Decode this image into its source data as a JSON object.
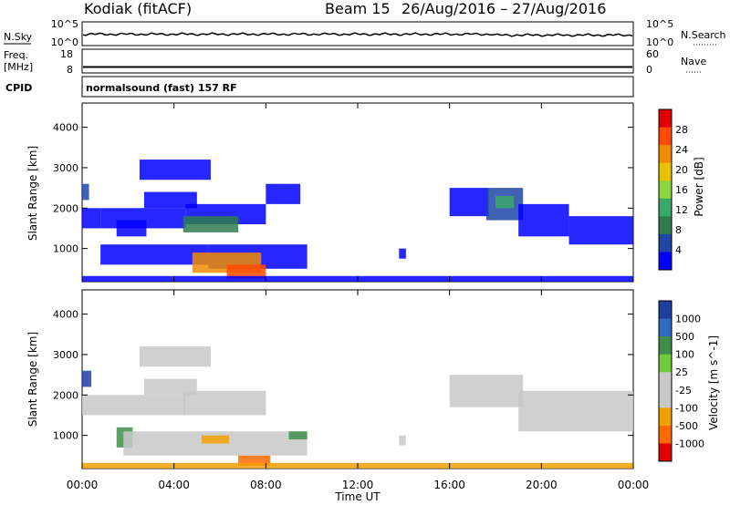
{
  "header": {
    "station": "Kodiak (fitACF)",
    "beam": "Beam 15",
    "date_range": "26/Aug/2016 – 27/Aug/2016"
  },
  "nsky_strip": {
    "left_label": "N.Sky",
    "right_label": "N.Search",
    "left_ticks": [
      "10^5",
      "10^0"
    ],
    "right_ticks": [
      "10^5",
      "10^0"
    ]
  },
  "freq_strip": {
    "left_label_line1": "Freq.",
    "left_label_line2": "[MHz]",
    "right_label": "Nave",
    "left_ticks": [
      "18",
      "8"
    ],
    "right_ticks": [
      "60",
      "0"
    ]
  },
  "cpid": {
    "label": "CPID",
    "text": "normalsound (fast) 157 RF"
  },
  "colors": {
    "power_scale": [
      "#0000ff",
      "#1f47a8",
      "#2e7d4f",
      "#3aa86a",
      "#8bd43c",
      "#e8c200",
      "#f08c00",
      "#ff4a00",
      "#e00000"
    ],
    "velocity_scale": [
      "#1f3fa0",
      "#2d6cc0",
      "#3f8f4a",
      "#6dcc3a",
      "#c8c8c8",
      "#c8c8c8",
      "#f0a000",
      "#ff6a00",
      "#e00000"
    ],
    "ground_scatter": "#c0c0c0"
  },
  "chart_data": [
    {
      "type": "heatmap",
      "title": "Power",
      "ylabel": "Slant Range [km]",
      "xlabel": "",
      "ylim": [
        180,
        4600
      ],
      "yticks": [
        "1000",
        "2000",
        "3000",
        "4000"
      ],
      "xticks": [
        "00:00",
        "04:00",
        "08:00",
        "12:00",
        "16:00",
        "20:00",
        "00:00"
      ],
      "colorbar_label": "Power [dB]",
      "colorbar_ticks": [
        "4",
        "8",
        "12",
        "16",
        "20",
        "24",
        "28"
      ],
      "regions": [
        {
          "t0": 0.0,
          "t1": 0.3,
          "r0": 2200,
          "r1": 2600,
          "level": 6
        },
        {
          "t0": 0.0,
          "t1": 0.8,
          "r0": 1500,
          "r1": 2000,
          "level": 5
        },
        {
          "t0": 0.8,
          "t1": 4.5,
          "r0": 1500,
          "r1": 2000,
          "level": 4
        },
        {
          "t0": 4.5,
          "t1": 8.0,
          "r0": 1600,
          "r1": 2100,
          "level": 4
        },
        {
          "t0": 1.5,
          "t1": 2.8,
          "r0": 1300,
          "r1": 1700,
          "level": 3
        },
        {
          "t0": 4.4,
          "t1": 6.8,
          "r0": 1400,
          "r1": 1800,
          "level": 12
        },
        {
          "t0": 8.0,
          "t1": 9.5,
          "r0": 2100,
          "r1": 2600,
          "level": 2
        },
        {
          "t0": 2.5,
          "t1": 5.6,
          "r0": 2700,
          "r1": 3200,
          "level": 3
        },
        {
          "t0": 2.7,
          "t1": 5.0,
          "r0": 2000,
          "r1": 2400,
          "level": 2
        },
        {
          "t0": 0.8,
          "t1": 5.5,
          "r0": 600,
          "r1": 1100,
          "level": 3
        },
        {
          "t0": 5.5,
          "t1": 9.8,
          "r0": 500,
          "r1": 1100,
          "level": 4
        },
        {
          "t0": 4.8,
          "t1": 7.8,
          "r0": 400,
          "r1": 900,
          "level": 26
        },
        {
          "t0": 6.3,
          "t1": 8.0,
          "r0": 250,
          "r1": 600,
          "level": 29
        },
        {
          "t0": 13.8,
          "t1": 14.1,
          "r0": 750,
          "r1": 1000,
          "level": 4
        },
        {
          "t0": 16.0,
          "t1": 17.7,
          "r0": 1800,
          "r1": 2500,
          "level": 3
        },
        {
          "t0": 17.6,
          "t1": 19.2,
          "r0": 1700,
          "r1": 2500,
          "level": 6
        },
        {
          "t0": 18.0,
          "t1": 18.8,
          "r0": 2000,
          "r1": 2300,
          "level": 14
        },
        {
          "t0": 19.0,
          "t1": 21.2,
          "r0": 1300,
          "r1": 2100,
          "level": 3
        },
        {
          "t0": 21.2,
          "t1": 24.0,
          "r0": 1100,
          "r1": 1800,
          "level": 3
        },
        {
          "t0": 0.0,
          "t1": 24.0,
          "r0": 180,
          "r1": 320,
          "level": 2
        }
      ]
    },
    {
      "type": "heatmap",
      "title": "Velocity",
      "ylabel": "Slant Range [km]",
      "xlabel": "Time UT",
      "ylim": [
        180,
        4600
      ],
      "yticks": [
        "1000",
        "2000",
        "3000",
        "4000"
      ],
      "xticks": [
        "00:00",
        "04:00",
        "08:00",
        "12:00",
        "16:00",
        "20:00",
        "00:00"
      ],
      "colorbar_label": "Velocity [m s^-1]",
      "colorbar_ticks": [
        "1000",
        "500",
        "100",
        "25",
        "-25",
        "-100",
        "-500",
        "-1000"
      ],
      "regions": [
        {
          "t0": 0.0,
          "t1": 0.4,
          "r0": 2200,
          "r1": 2600,
          "level": 800
        },
        {
          "t0": 0.0,
          "t1": 4.5,
          "r0": 1500,
          "r1": 2000,
          "level": 0
        },
        {
          "t0": 4.4,
          "t1": 8.0,
          "r0": 1500,
          "r1": 2100,
          "level": 0
        },
        {
          "t0": 2.5,
          "t1": 5.6,
          "r0": 2700,
          "r1": 3200,
          "level": 0
        },
        {
          "t0": 2.7,
          "t1": 5.0,
          "r0": 2000,
          "r1": 2400,
          "level": 0
        },
        {
          "t0": 1.5,
          "t1": 2.2,
          "r0": 700,
          "r1": 1200,
          "level": 150
        },
        {
          "t0": 1.8,
          "t1": 9.8,
          "r0": 500,
          "r1": 1100,
          "level": 0
        },
        {
          "t0": 5.2,
          "t1": 6.4,
          "r0": 800,
          "r1": 1000,
          "level": -200
        },
        {
          "t0": 6.8,
          "t1": 8.2,
          "r0": 250,
          "r1": 500,
          "level": -600
        },
        {
          "t0": 9.0,
          "t1": 9.8,
          "r0": 900,
          "r1": 1100,
          "level": 150
        },
        {
          "t0": 13.8,
          "t1": 14.1,
          "r0": 750,
          "r1": 1000,
          "level": 0
        },
        {
          "t0": 16.0,
          "t1": 19.2,
          "r0": 1700,
          "r1": 2500,
          "level": 0
        },
        {
          "t0": 19.0,
          "t1": 24.0,
          "r0": 1100,
          "r1": 2100,
          "level": 0
        },
        {
          "t0": 0.0,
          "t1": 24.0,
          "r0": 180,
          "r1": 320,
          "level": -100
        }
      ]
    }
  ]
}
